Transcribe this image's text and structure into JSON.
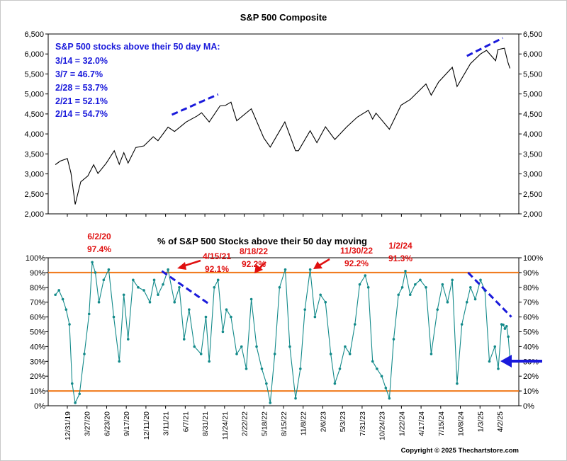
{
  "chart_data": [
    {
      "type": "line",
      "title": "S&P 500 Composite",
      "ylim": [
        2000,
        6500
      ],
      "yticks": [
        "2,000",
        "2,500",
        "3,000",
        "3,500",
        "4,000",
        "4,500",
        "5,000",
        "5,500",
        "6,000",
        "6,500"
      ],
      "series": [
        {
          "color": "#000000",
          "x": [
            "2019-12-31",
            "2020-01-20",
            "2020-02-19",
            "2020-03-05",
            "2020-03-23",
            "2020-04-15",
            "2020-05-15",
            "2020-06-08",
            "2020-06-26",
            "2020-07-31",
            "2020-09-02",
            "2020-09-23",
            "2020-10-12",
            "2020-10-30",
            "2020-12-01",
            "2021-01-04",
            "2021-02-12",
            "2021-03-04",
            "2021-04-15",
            "2021-05-12",
            "2021-06-30",
            "2021-08-15",
            "2021-09-02",
            "2021-10-04",
            "2021-11-18",
            "2021-12-10",
            "2022-01-03",
            "2022-01-27",
            "2022-03-29",
            "2022-05-20",
            "2022-06-16",
            "2022-08-16",
            "2022-09-30",
            "2022-10-12",
            "2022-11-30",
            "2022-12-28",
            "2023-02-02",
            "2023-03-13",
            "2023-05-01",
            "2023-06-15",
            "2023-07-31",
            "2023-08-18",
            "2023-09-01",
            "2023-10-27",
            "2023-12-15",
            "2024-01-22",
            "2024-03-28",
            "2024-04-19",
            "2024-05-20",
            "2024-07-16",
            "2024-08-05",
            "2024-09-30",
            "2024-11-11",
            "2024-12-06",
            "2025-01-13",
            "2025-01-23",
            "2025-02-19",
            "2025-03-05",
            "2025-03-14"
          ],
          "values": [
            3231,
            3320,
            3386,
            3020,
            2237,
            2800,
            2950,
            3230,
            3010,
            3270,
            3580,
            3240,
            3530,
            3270,
            3660,
            3700,
            3930,
            3830,
            4170,
            4060,
            4300,
            4450,
            4530,
            4300,
            4700,
            4710,
            4796,
            4330,
            4630,
            3900,
            3670,
            4300,
            3580,
            3580,
            4080,
            3780,
            4180,
            3860,
            4170,
            4420,
            4590,
            4370,
            4520,
            4117,
            4720,
            4860,
            5250,
            4970,
            5300,
            5667,
            5186,
            5760,
            6000,
            6090,
            5830,
            6110,
            6144,
            5800,
            5639
          ]
        }
      ],
      "annotations": {
        "heading": "S&P 500 stocks above their 50 day MA:",
        "items": [
          "3/14 = 32.0%",
          "3/7 = 46.7%",
          "2/28 = 53.7%",
          "2/21 = 52.1%",
          "2/14 = 54.7%"
        ]
      },
      "trend_lines": [
        {
          "from": {
            "x": "2021-05-01",
            "y": 4480
          },
          "to": {
            "x": "2021-11-10",
            "y": 4990
          }
        },
        {
          "from": {
            "x": "2024-09-15",
            "y": 5950
          },
          "to": {
            "x": "2025-02-12",
            "y": 6400
          }
        }
      ]
    },
    {
      "type": "line",
      "title": "% of S&P 500 Stocks above their 50 day moving",
      "ylim": [
        0,
        100
      ],
      "yticks": [
        "0%",
        "10%",
        "20%",
        "30%",
        "40%",
        "50%",
        "60%",
        "70%",
        "80%",
        "90%",
        "100%"
      ],
      "reference_lines": [
        10,
        90
      ],
      "reference_color": "#f07818",
      "categories": [
        "12/31/19",
        "3/27/20",
        "6/23/20",
        "9/17/20",
        "12/11/20",
        "3/11/21",
        "6/7/21",
        "8/31/21",
        "11/24/21",
        "2/22/22",
        "5/18/22",
        "8/15/22",
        "11/8/22",
        "2/6/23",
        "5/3/23",
        "7/31/23",
        "10/24/23",
        "1/22/24",
        "4/17/24",
        "7/15/24",
        "10/8/24",
        "1/3/25",
        "4/2/25"
      ],
      "series": [
        {
          "color": "#138a8a",
          "x": [
            "2019-12-31",
            "2020-01-15",
            "2020-01-31",
            "2020-02-14",
            "2020-02-28",
            "2020-03-10",
            "2020-03-23",
            "2020-04-10",
            "2020-04-30",
            "2020-05-20",
            "2020-06-02",
            "2020-06-15",
            "2020-06-30",
            "2020-07-20",
            "2020-08-10",
            "2020-08-31",
            "2020-09-23",
            "2020-10-12",
            "2020-10-30",
            "2020-11-20",
            "2020-12-11",
            "2021-01-04",
            "2021-01-29",
            "2021-02-16",
            "2021-03-04",
            "2021-03-25",
            "2021-04-15",
            "2021-05-12",
            "2021-06-01",
            "2021-06-21",
            "2021-07-12",
            "2021-08-03",
            "2021-08-31",
            "2021-09-20",
            "2021-10-04",
            "2021-10-25",
            "2021-11-10",
            "2021-11-30",
            "2021-12-15",
            "2022-01-03",
            "2022-01-27",
            "2022-02-16",
            "2022-03-08",
            "2022-03-29",
            "2022-04-20",
            "2022-05-12",
            "2022-05-31",
            "2022-06-16",
            "2022-07-05",
            "2022-07-25",
            "2022-08-18",
            "2022-09-06",
            "2022-09-30",
            "2022-10-20",
            "2022-11-08",
            "2022-11-30",
            "2022-12-20",
            "2023-01-12",
            "2023-02-02",
            "2023-02-24",
            "2023-03-13",
            "2023-04-03",
            "2023-04-25",
            "2023-05-15",
            "2023-06-05",
            "2023-06-25",
            "2023-07-18",
            "2023-07-31",
            "2023-08-18",
            "2023-09-05",
            "2023-09-25",
            "2023-10-12",
            "2023-10-27",
            "2023-11-14",
            "2023-12-04",
            "2023-12-20",
            "2024-01-02",
            "2024-01-22",
            "2024-02-12",
            "2024-03-04",
            "2024-03-28",
            "2024-04-19",
            "2024-05-15",
            "2024-06-05",
            "2024-06-26",
            "2024-07-16",
            "2024-08-05",
            "2024-08-25",
            "2024-09-15",
            "2024-09-30",
            "2024-10-20",
            "2024-11-11",
            "2024-11-29",
            "2024-12-18",
            "2025-01-10",
            "2025-01-24",
            "2025-02-07",
            "2025-02-14",
            "2025-02-21",
            "2025-02-28",
            "2025-03-07",
            "2025-03-14"
          ],
          "values": [
            75,
            78,
            72,
            65,
            55,
            15,
            2,
            8,
            35,
            62,
            97,
            90,
            70,
            85,
            92,
            60,
            30,
            75,
            45,
            85,
            80,
            78,
            70,
            85,
            75,
            82,
            92,
            70,
            80,
            45,
            65,
            40,
            35,
            60,
            30,
            80,
            85,
            50,
            65,
            60,
            35,
            40,
            25,
            72,
            40,
            25,
            15,
            2,
            35,
            80,
            92,
            40,
            5,
            25,
            65,
            92,
            60,
            75,
            70,
            35,
            15,
            25,
            40,
            35,
            55,
            82,
            88,
            80,
            30,
            25,
            20,
            12,
            5,
            45,
            75,
            80,
            91,
            75,
            82,
            85,
            80,
            35,
            65,
            82,
            70,
            85,
            15,
            55,
            70,
            80,
            72,
            85,
            78,
            30,
            40,
            25,
            55,
            54.7,
            52.1,
            53.7,
            46.7,
            32.0
          ]
        }
      ],
      "labels": [
        {
          "date": "6/2/20",
          "value": "97.4%"
        },
        {
          "date": "4/15/21",
          "value": "92.1%"
        },
        {
          "date": "8/18/22",
          "value": "92.2%"
        },
        {
          "date": "11/30/22",
          "value": "92.2%"
        },
        {
          "date": "1/2/24",
          "value": "91.3%"
        }
      ],
      "trend_lines": [
        {
          "from": {
            "x": "2021-03-20",
            "y": 91
          },
          "to": {
            "x": "2021-10-10",
            "y": 68
          }
        },
        {
          "from": {
            "x": "2024-09-20",
            "y": 90
          },
          "to": {
            "x": "2025-03-20",
            "y": 60
          }
        }
      ]
    }
  ],
  "copyright": "Copyright © 2025 Thechartstore.com",
  "colors": {
    "trend": "#1a1adb",
    "arrow_red": "#e01010",
    "arrow_blue": "#1a1adb"
  }
}
